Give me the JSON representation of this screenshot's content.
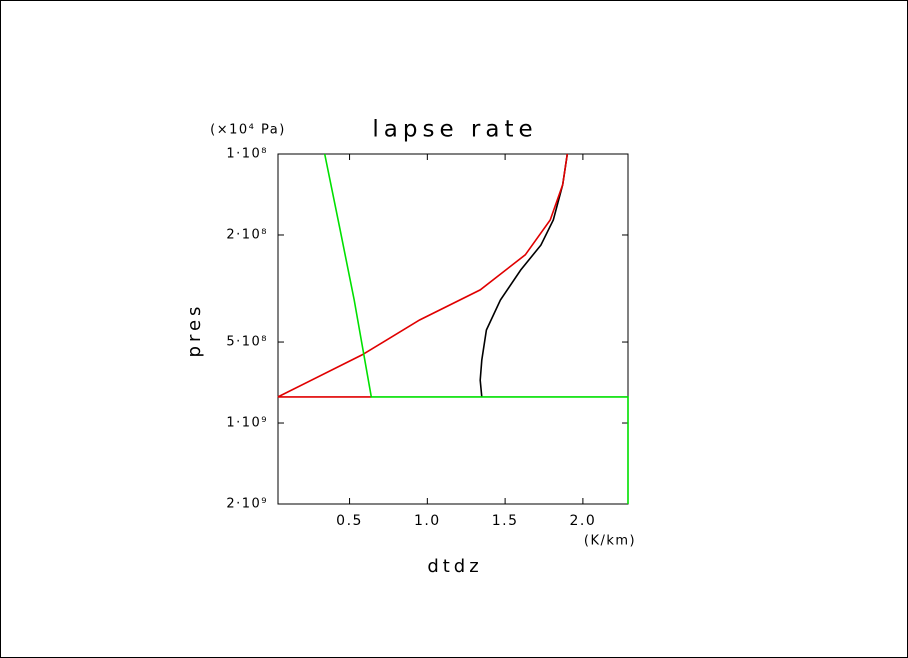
{
  "chart_data": {
    "type": "line",
    "title": "lapse rate",
    "x_label": "dtdz",
    "x_unit": "(K/km)",
    "y_label": "pres",
    "y_unit": "(×10⁴ Pa)",
    "xlim": [
      0.04,
      2.29
    ],
    "xticks": [
      {
        "value": 0.5,
        "label": "0.5"
      },
      {
        "value": 1.0,
        "label": "1.0"
      },
      {
        "value": 1.5,
        "label": "1.5"
      },
      {
        "value": 2.0,
        "label": "2.0"
      }
    ],
    "ylim": [
      100000000,
      2000000000
    ],
    "y_scale": "log",
    "y_reversed": true,
    "yticks": [
      {
        "value": 100000000,
        "label": "1·10⁸"
      },
      {
        "value": 200000000,
        "label": "2·10⁸"
      },
      {
        "value": 500000000,
        "label": "5·10⁸"
      },
      {
        "value": 1000000000,
        "label": "1·10⁹"
      },
      {
        "value": 2000000000,
        "label": "2·10⁹"
      }
    ],
    "series": [
      {
        "color": "#000000",
        "x": [
          1.9,
          1.87,
          1.81,
          1.73,
          1.6,
          1.47,
          1.38,
          1.35,
          1.34,
          1.35
        ],
        "values": [
          100000000,
          130000000,
          176000000,
          218000000,
          270000000,
          349000000,
          451000000,
          583000000,
          693000000,
          800000000
        ]
      },
      {
        "color": "#e00000",
        "x": [
          1.9,
          1.87,
          1.79,
          1.63,
          1.34,
          0.95,
          0.58,
          0.04,
          0.64
        ],
        "values": [
          100000000,
          130000000,
          176000000,
          237000000,
          320000000,
          414000000,
          558000000,
          800000000,
          800000000
        ]
      },
      {
        "color": "#00e000",
        "x": [
          0.34,
          0.44,
          0.53,
          0.64,
          2.29,
          2.29
        ],
        "values": [
          100000000,
          192000000,
          349000000,
          800000000,
          800000000,
          2000000000
        ]
      }
    ]
  }
}
